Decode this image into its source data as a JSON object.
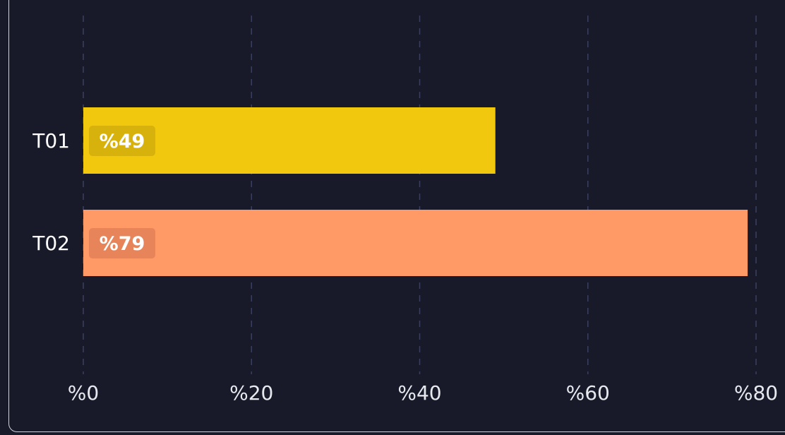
{
  "chart_data": {
    "type": "bar",
    "orientation": "horizontal",
    "categories": [
      "T01",
      "T02"
    ],
    "values": [
      49,
      79
    ],
    "value_labels": [
      "%49",
      "%79"
    ],
    "xlim": [
      0,
      80
    ],
    "xticks": [
      0,
      20,
      40,
      60,
      80
    ],
    "xtick_labels": [
      "%0",
      "%20",
      "%40",
      "%60",
      "%80"
    ],
    "grid": "vertical dashed",
    "colors": [
      "#f2c80f",
      "#ff9966"
    ],
    "label_badge_colors": [
      "#d8b20c",
      "#e8845a"
    ],
    "grid_color": "#3a3f5e",
    "background": "#181a2a"
  }
}
